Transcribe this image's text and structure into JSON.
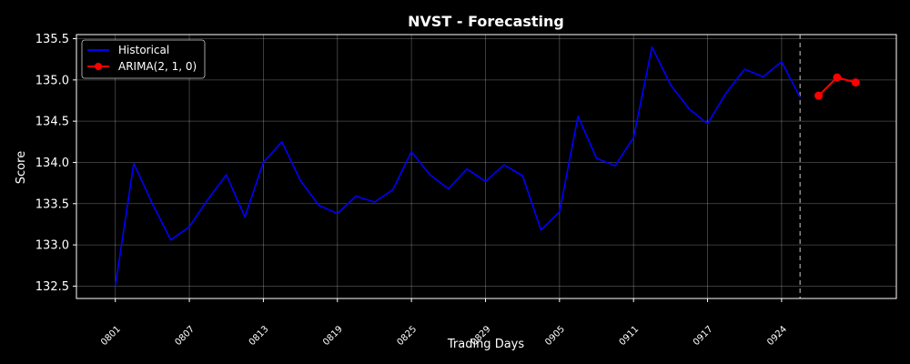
{
  "chart_data": {
    "type": "line",
    "title": "NVST - Forecasting",
    "xlabel": "Trading Days",
    "ylabel": "Score",
    "ylim": [
      132.35,
      135.55
    ],
    "yticks": [
      132.5,
      133.0,
      133.5,
      134.0,
      134.5,
      135.0,
      135.5
    ],
    "ytick_labels": [
      "132.5",
      "133.0",
      "133.5",
      "134.0",
      "134.5",
      "135.0",
      "135.5"
    ],
    "xtick_labels": [
      "0801",
      "0807",
      "0813",
      "0819",
      "0825",
      "0829",
      "0905",
      "0911",
      "0917",
      "0924"
    ],
    "xtick_index_step": 4,
    "grid": true,
    "legend_position": "top-left",
    "forecast_boundary_index": 37,
    "series": [
      {
        "name": "Historical",
        "color": "#0000ff",
        "marker": "none",
        "x": [
          0,
          1,
          2,
          3,
          4,
          5,
          6,
          7,
          8,
          9,
          10,
          11,
          12,
          13,
          14,
          15,
          16,
          17,
          18,
          19,
          20,
          21,
          22,
          23,
          24,
          25,
          26,
          27,
          28,
          29,
          30,
          31,
          32,
          33,
          34,
          35,
          36,
          37
        ],
        "values": [
          132.5,
          133.99,
          133.5,
          133.06,
          133.22,
          133.55,
          133.85,
          133.34,
          134.0,
          134.25,
          133.78,
          133.48,
          133.38,
          133.59,
          133.52,
          133.67,
          134.13,
          133.85,
          133.68,
          133.92,
          133.77,
          133.97,
          133.84,
          133.18,
          133.4,
          134.56,
          134.05,
          133.96,
          134.3,
          135.4,
          134.94,
          134.65,
          134.47,
          134.84,
          135.13,
          135.04,
          135.22,
          134.79
        ]
      },
      {
        "name": "ARIMA(2, 1, 0)",
        "color": "#ff0000",
        "marker": "circle",
        "x": [
          38,
          39,
          40
        ],
        "values": [
          134.81,
          135.03,
          134.97
        ]
      }
    ]
  }
}
